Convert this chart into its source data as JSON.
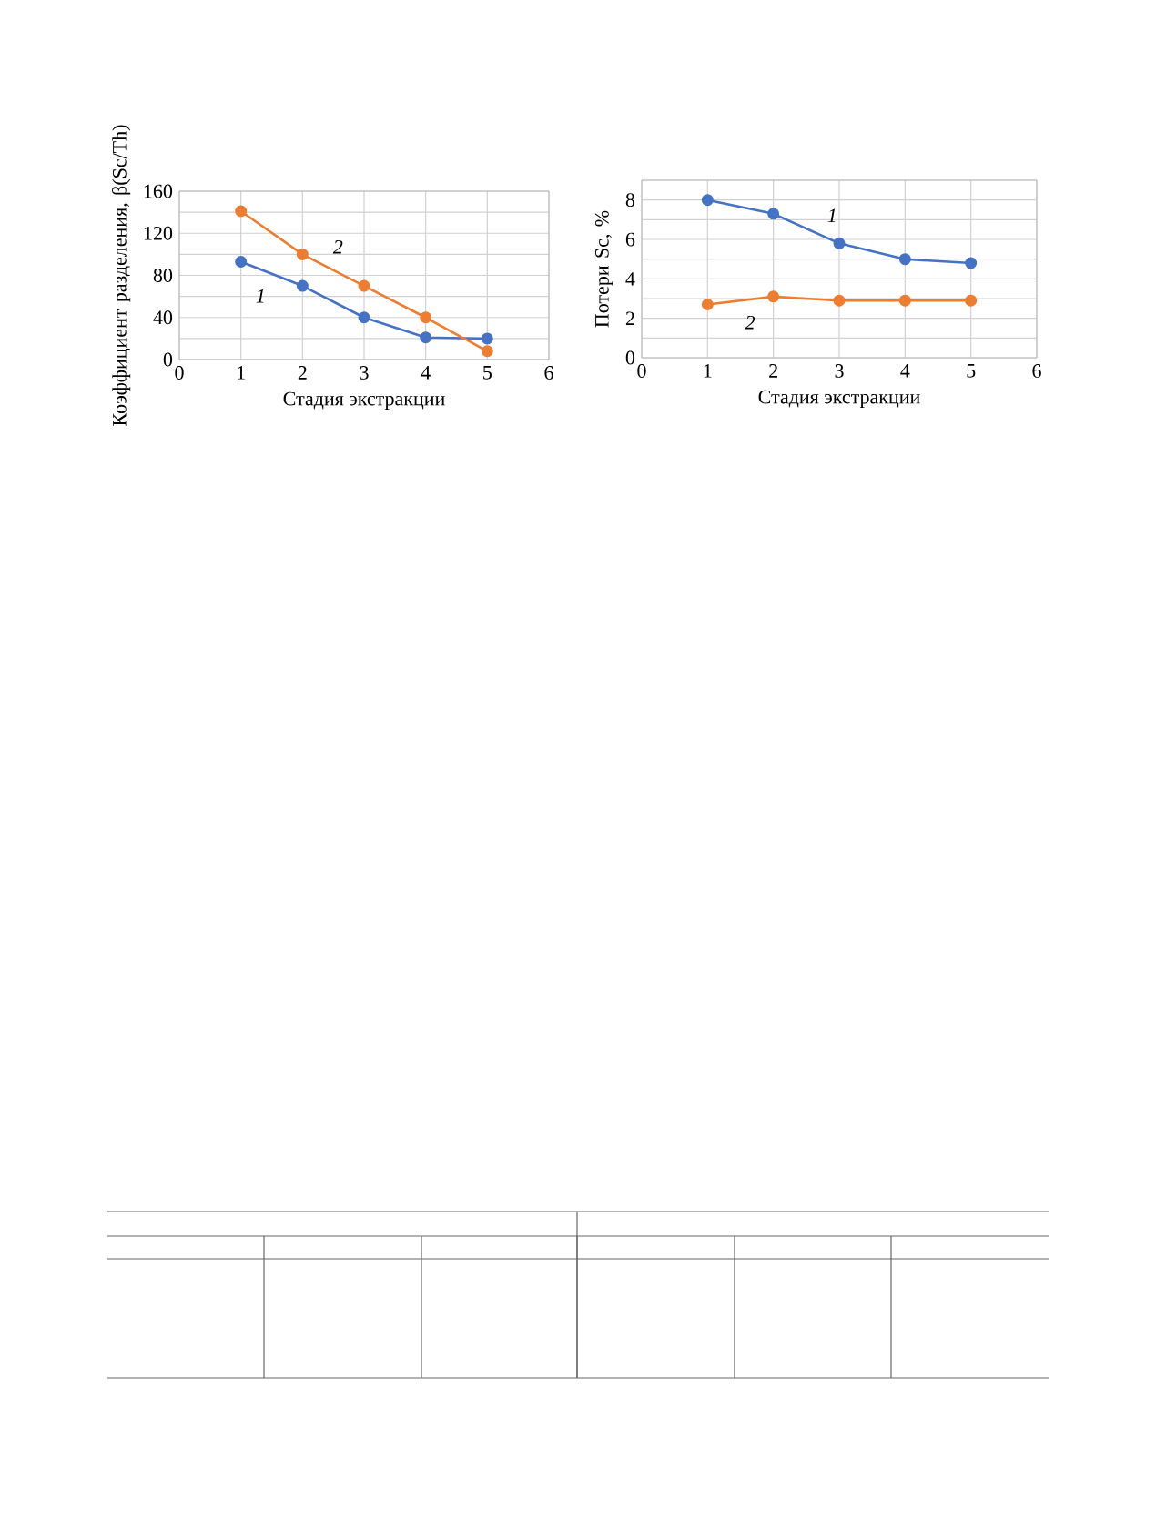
{
  "chart_data": [
    {
      "type": "line",
      "xlabel": "Стадия экстракции",
      "ylabel": "Коэффициент разделения, β(Sc/Th)",
      "x": [
        1,
        2,
        3,
        4,
        5
      ],
      "xlim": [
        0,
        6
      ],
      "xticks": [
        0,
        1,
        2,
        3,
        4,
        5,
        6
      ],
      "ylim": [
        0,
        160
      ],
      "yticks": [
        0,
        {
          "value": 20,
          "label": null
        },
        40,
        {
          "value": 60,
          "label": null
        },
        80,
        {
          "value": 100,
          "label": null
        },
        120,
        {
          "value": 140,
          "label": null
        },
        160
      ],
      "grid": true,
      "marker": "circle",
      "line_style": "solid",
      "series": [
        {
          "name": "1",
          "color": "#4472c4",
          "values": [
            93,
            70,
            40,
            21,
            20
          ]
        },
        {
          "name": "2",
          "color": "#ed7d31",
          "values": [
            141,
            100,
            70,
            40,
            8
          ]
        }
      ]
    },
    {
      "type": "line",
      "xlabel": "Стадия экстракции",
      "ylabel": "Потери Sc, %",
      "x": [
        1,
        2,
        3,
        4,
        5
      ],
      "xlim": [
        0,
        6
      ],
      "xticks": [
        0,
        1,
        2,
        3,
        4,
        5,
        6
      ],
      "ylim": [
        0,
        9
      ],
      "yticks": [
        0,
        {
          "value": 1,
          "label": null
        },
        2,
        {
          "value": 3,
          "label": null
        },
        4,
        {
          "value": 5,
          "label": null
        },
        6,
        {
          "value": 7,
          "label": null
        },
        8,
        {
          "value": 9,
          "label": null
        }
      ],
      "grid": true,
      "marker": "circle",
      "line_style": "solid",
      "series": [
        {
          "name": "1",
          "color": "#4472c4",
          "values": [
            8.0,
            7.3,
            5.8,
            5.0,
            4.8
          ]
        },
        {
          "name": "2",
          "color": "#ed7d31",
          "values": [
            2.7,
            3.1,
            2.9,
            2.9,
            2.9
          ]
        }
      ]
    }
  ]
}
